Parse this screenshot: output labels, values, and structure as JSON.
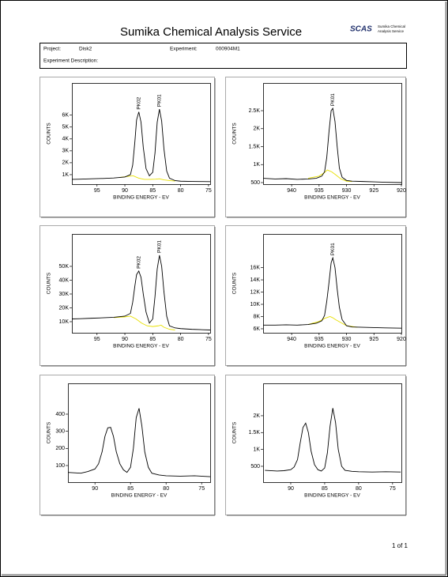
{
  "header": {
    "title": "Sumika Chemical Analysis Service",
    "logo": "SCAS",
    "logo_text": [
      "Sumika Chemical",
      "Analysis Service"
    ]
  },
  "info": {
    "project_label": "Project:",
    "project": "Disk2",
    "experiment_label": "Experiment:",
    "experiment": "000904M1",
    "description_label": "Experiment Description:"
  },
  "chart_data": [
    {
      "type": "line",
      "xlabel": "BINDING ENERGY - EV",
      "ylabel": "COUNTS",
      "xlim": [
        99.5,
        74.7
      ],
      "ylim": [
        200,
        8700
      ],
      "xticks": [
        95,
        90,
        85,
        80,
        75
      ],
      "yticks": [
        {
          "value": 1000,
          "label": "1K"
        },
        {
          "value": 2000,
          "label": "2K"
        },
        {
          "value": 3000,
          "label": "3K"
        },
        {
          "value": 4000,
          "label": "4K"
        },
        {
          "value": 5000,
          "label": "5K"
        },
        {
          "value": 6000,
          "label": "6K"
        }
      ],
      "series": [
        {
          "color": "#e8e000",
          "x": [
            91,
            89.5,
            88.5,
            87.5,
            86.5,
            85.5,
            84.5,
            83.8,
            83,
            82,
            81
          ],
          "values": [
            760,
            850,
            900,
            700,
            600,
            600,
            620,
            650,
            560,
            500,
            460
          ]
        },
        {
          "color": "#000000",
          "x": [
            99.5,
            98,
            96,
            94,
            92,
            90,
            89,
            88.6,
            88.2,
            87.9,
            87.5,
            87.1,
            86.7,
            86.2,
            85.6,
            85,
            84.6,
            84.2,
            83.8,
            83.4,
            83,
            82.5,
            82,
            81,
            80,
            78,
            76,
            74.7
          ],
          "values": [
            600,
            620,
            650,
            680,
            720,
            800,
            1000,
            1800,
            3800,
            5600,
            6270,
            5400,
            3300,
            1500,
            900,
            1200,
            2800,
            5400,
            6500,
            5500,
            3200,
            1300,
            700,
            500,
            450,
            430,
            420,
            410
          ]
        }
      ],
      "annotations": [
        {
          "text": "PK02",
          "x": 87.5
        },
        {
          "text": "PK01",
          "x": 83.8
        }
      ]
    },
    {
      "type": "line",
      "xlabel": "BINDING ENERGY - EV",
      "ylabel": "COUNTS",
      "xlim": [
        945.2,
        920
      ],
      "ylim": [
        456,
        3270
      ],
      "xticks": [
        940,
        935,
        930,
        925,
        920
      ],
      "yticks": [
        500,
        {
          "value": 1000,
          "label": "1K"
        },
        {
          "value": 1500,
          "label": "1.5K"
        },
        {
          "value": 2000,
          "label": "2K"
        },
        {
          "value": 2500,
          "label": "2.5K"
        }
      ],
      "series": [
        {
          "color": "#e8e000",
          "x": [
            937,
            935,
            934,
            933.5,
            932.7,
            932,
            931,
            930,
            929
          ],
          "values": [
            620,
            680,
            780,
            850,
            800,
            720,
            600,
            540,
            530
          ]
        },
        {
          "color": "#000000",
          "x": [
            945.2,
            943,
            941,
            939,
            937,
            935.5,
            934.5,
            934,
            933.6,
            933.2,
            932.8,
            932.5,
            932.1,
            931.7,
            931.3,
            930.8,
            930,
            929,
            927,
            925,
            923,
            920
          ],
          "values": [
            620,
            600,
            610,
            590,
            600,
            620,
            680,
            800,
            1200,
            1900,
            2500,
            2565,
            2200,
            1500,
            900,
            650,
            560,
            540,
            530,
            520,
            510,
            500
          ]
        }
      ],
      "annotations": [
        {
          "text": "PK01",
          "x": 932.5
        }
      ]
    },
    {
      "type": "line",
      "xlabel": "BINDING ENERGY - EV",
      "ylabel": "COUNTS",
      "xlim": [
        99.5,
        74.7
      ],
      "ylim": [
        2000,
        73400
      ],
      "xticks": [
        95,
        90,
        85,
        80,
        75
      ],
      "yticks": [
        {
          "value": 10000,
          "label": "10K"
        },
        {
          "value": 20000,
          "label": "20K"
        },
        {
          "value": 30000,
          "label": "30K"
        },
        {
          "value": 40000,
          "label": "40K"
        },
        {
          "value": 50000,
          "label": "50K"
        }
      ],
      "series": [
        {
          "color": "#e8e000",
          "x": [
            92,
            90,
            89,
            88,
            87,
            86,
            85,
            84,
            83.5,
            83,
            82,
            81
          ],
          "values": [
            13000,
            13500,
            14000,
            12000,
            9000,
            7000,
            6500,
            7000,
            7500,
            6000,
            4500,
            4000
          ]
        },
        {
          "color": "#000000",
          "x": [
            99.5,
            98,
            96,
            94,
            92,
            90,
            89,
            88.6,
            88.2,
            87.9,
            87.5,
            87.1,
            86.7,
            86.2,
            85.6,
            85,
            84.6,
            84.2,
            83.8,
            83.4,
            83,
            82.5,
            82,
            81,
            80,
            78,
            76,
            74.7
          ],
          "values": [
            12000,
            12200,
            12500,
            12800,
            13200,
            14000,
            16000,
            24000,
            36000,
            44000,
            46600,
            42000,
            30000,
            17000,
            9000,
            12000,
            28000,
            48000,
            58000,
            50000,
            32000,
            14000,
            7000,
            5500,
            5000,
            4500,
            4200,
            4000
          ]
        }
      ],
      "annotations": [
        {
          "text": "PK02",
          "x": 87.5
        },
        {
          "text": "PK01",
          "x": 83.8
        }
      ]
    },
    {
      "type": "line",
      "xlabel": "BINDING ENERGY - EV",
      "ylabel": "COUNTS",
      "xlim": [
        945.2,
        920
      ],
      "ylim": [
        5350,
        21500
      ],
      "xticks": [
        940,
        935,
        930,
        925,
        920
      ],
      "yticks": [
        {
          "value": 6000,
          "label": "6K"
        },
        {
          "value": 8000,
          "label": "8K"
        },
        {
          "value": 10000,
          "label": "10K"
        },
        {
          "value": 12000,
          "label": "12K"
        },
        {
          "value": 14000,
          "label": "14K"
        },
        {
          "value": 16000,
          "label": "16K"
        }
      ],
      "series": [
        {
          "color": "#e8e000",
          "x": [
            937,
            935,
            934,
            933,
            932.5,
            932,
            931,
            930,
            928
          ],
          "values": [
            6700,
            7200,
            7700,
            8000,
            7800,
            7500,
            7000,
            6500,
            6250
          ]
        },
        {
          "color": "#000000",
          "x": [
            945.2,
            943,
            941,
            939,
            937,
            935.5,
            934.5,
            934,
            933.6,
            933.2,
            932.8,
            932.5,
            932.1,
            931.7,
            931.3,
            930.8,
            930,
            929,
            927,
            925,
            923,
            920
          ],
          "values": [
            6600,
            6600,
            6650,
            6600,
            6700,
            6900,
            7300,
            8200,
            10500,
            13500,
            16800,
            17600,
            16000,
            12500,
            9500,
            7500,
            6500,
            6300,
            6250,
            6200,
            6150,
            6100
          ]
        }
      ],
      "annotations": [
        {
          "text": "PK01",
          "x": 932.5
        }
      ]
    },
    {
      "type": "line",
      "xlabel": "BINDING ENERGY - EV",
      "ylabel": "COUNTS",
      "xlim": [
        93.8,
        73.8
      ],
      "ylim": [
        3,
        580
      ],
      "xticks": [
        90,
        85,
        80,
        75
      ],
      "yticks": [
        100,
        200,
        300,
        400
      ],
      "series": [
        {
          "color": "#000000",
          "x": [
            93.8,
            92,
            91,
            90,
            89.5,
            89,
            88.6,
            88.2,
            87.8,
            87.4,
            87,
            86.5,
            86,
            85.5,
            85,
            84.6,
            84.2,
            83.8,
            83.4,
            83,
            82.5,
            82,
            81,
            80,
            78,
            76,
            73.8
          ],
          "values": [
            60,
            55,
            65,
            80,
            110,
            180,
            270,
            320,
            323,
            270,
            180,
            110,
            75,
            60,
            90,
            200,
            380,
            434,
            330,
            180,
            90,
            55,
            45,
            40,
            38,
            40,
            35
          ]
        }
      ]
    },
    {
      "type": "line",
      "xlabel": "BINDING ENERGY - EV",
      "ylabel": "COUNTS",
      "xlim": [
        94.07,
        73.7
      ],
      "ylim": [
        30,
        2960
      ],
      "xticks": [
        90,
        85,
        80,
        75
      ],
      "yticks": [
        500,
        {
          "value": 1000,
          "label": "1K"
        },
        {
          "value": 1500,
          "label": "1.5K"
        },
        {
          "value": 2000,
          "label": "2K"
        }
      ],
      "series": [
        {
          "color": "#000000",
          "x": [
            93.8,
            92,
            91,
            90,
            89.5,
            89,
            88.6,
            88.2,
            87.8,
            87.4,
            87,
            86.5,
            86,
            85.5,
            85,
            84.6,
            84.2,
            83.8,
            83.4,
            83,
            82.5,
            82,
            81,
            80,
            78,
            76,
            73.8
          ],
          "values": [
            380,
            360,
            370,
            400,
            480,
            700,
            1200,
            1650,
            1780,
            1500,
            950,
            550,
            400,
            360,
            450,
            900,
            1700,
            2225,
            1800,
            1000,
            500,
            380,
            350,
            340,
            330,
            340,
            330
          ]
        }
      ]
    }
  ],
  "footer": {
    "page": "1 of 1"
  }
}
